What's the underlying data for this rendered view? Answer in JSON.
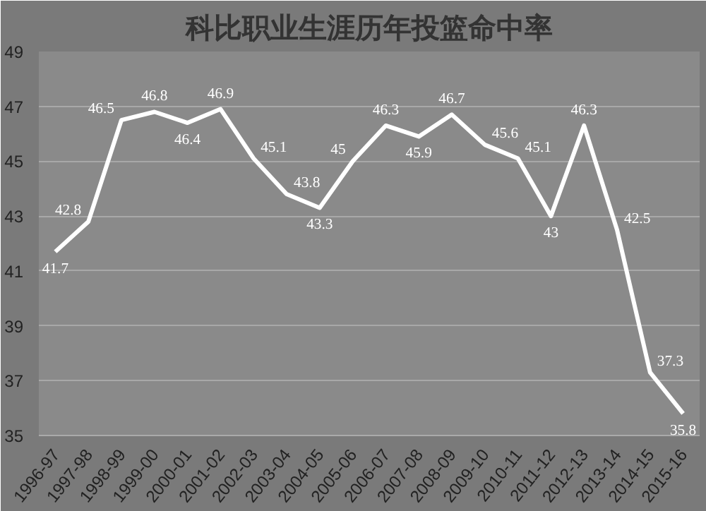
{
  "chart_data": {
    "type": "line",
    "title": "科比职业生涯历年投篮命中率",
    "categories": [
      "1996-97",
      "1997-98",
      "1998-99",
      "1999-00",
      "2000-01",
      "2001-02",
      "2002-03",
      "2003-04",
      "2004-05",
      "2005-06",
      "2006-07",
      "2007-08",
      "2008-09",
      "2009-10",
      "2010-11",
      "2011-12",
      "2012-13",
      "2013-14",
      "2014-15",
      "2015-16"
    ],
    "series": [
      {
        "color": "#ffffff",
        "values": [
          41.7,
          42.8,
          46.5,
          46.8,
          46.4,
          46.9,
          45.1,
          43.8,
          43.3,
          45,
          46.3,
          45.9,
          46.7,
          45.6,
          45.1,
          43,
          46.3,
          42.5,
          37.3,
          35.8
        ]
      }
    ],
    "ylim": [
      35,
      49
    ],
    "yticks": [
      35,
      37,
      39,
      41,
      43,
      45,
      47,
      49
    ],
    "grid": "y",
    "data_labels": true,
    "marker": "none",
    "line_style": "solid"
  }
}
